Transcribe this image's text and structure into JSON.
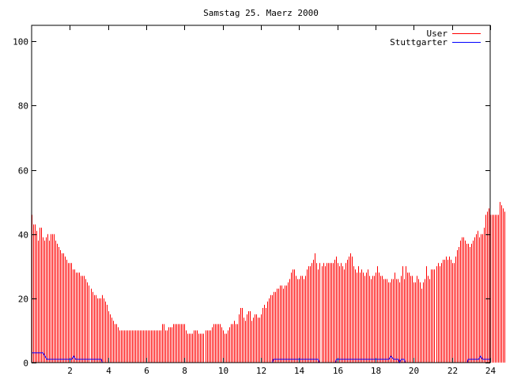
{
  "chart_data": {
    "type": "bar",
    "title": "Samstag 25. Maerz 2000",
    "xlabel": "",
    "ylabel": "",
    "xlim": [
      0,
      24
    ],
    "ylim": [
      0,
      105
    ],
    "xticks": [
      2,
      4,
      6,
      8,
      10,
      12,
      14,
      16,
      18,
      20,
      22,
      24
    ],
    "yticks": [
      0,
      20,
      40,
      60,
      80,
      100
    ],
    "grid": false,
    "legend_position": "top-right",
    "series": [
      {
        "name": "User",
        "color": "#ff0000",
        "style": "impulses",
        "x_start": 0,
        "x_step": 0.08333,
        "values": [
          46,
          43,
          43,
          41,
          38,
          42,
          42,
          39,
          38,
          39,
          40,
          38,
          40,
          40,
          40,
          38,
          37,
          36,
          35,
          34,
          34,
          33,
          32,
          31,
          31,
          31,
          29,
          29,
          28,
          28,
          28,
          27,
          27,
          27,
          26,
          25,
          24,
          23,
          22,
          21,
          21,
          20,
          20,
          20,
          21,
          20,
          19,
          18,
          16,
          15,
          14,
          13,
          12,
          12,
          11,
          10,
          10,
          10,
          10,
          10,
          10,
          10,
          10,
          10,
          10,
          10,
          10,
          10,
          10,
          10,
          10,
          10,
          10,
          10,
          10,
          10,
          10,
          10,
          10,
          10,
          10,
          10,
          12,
          12,
          10,
          10,
          11,
          11,
          11,
          12,
          12,
          12,
          12,
          12,
          12,
          12,
          12,
          10,
          9,
          9,
          9,
          9,
          10,
          10,
          10,
          9,
          9,
          9,
          9,
          10,
          10,
          10,
          10,
          11,
          12,
          12,
          12,
          12,
          12,
          11,
          10,
          9,
          9,
          10,
          11,
          12,
          12,
          13,
          12,
          12,
          15,
          17,
          17,
          14,
          13,
          15,
          16,
          16,
          13,
          14,
          15,
          15,
          14,
          14,
          15,
          17,
          18,
          17,
          19,
          20,
          21,
          21,
          22,
          22,
          23,
          23,
          24,
          24,
          23,
          24,
          24,
          25,
          26,
          28,
          29,
          29,
          27,
          26,
          26,
          27,
          27,
          26,
          27,
          29,
          30,
          30,
          31,
          32,
          34,
          31,
          29,
          31,
          30,
          31,
          30,
          31,
          31,
          31,
          31,
          31,
          32,
          33,
          31,
          30,
          31,
          30,
          29,
          31,
          32,
          33,
          34,
          33,
          30,
          29,
          28,
          30,
          28,
          29,
          28,
          27,
          28,
          29,
          27,
          26,
          27,
          27,
          28,
          30,
          28,
          27,
          27,
          26,
          26,
          26,
          25,
          25,
          26,
          26,
          28,
          26,
          26,
          25,
          27,
          30,
          26,
          30,
          28,
          28,
          27,
          27,
          25,
          25,
          27,
          26,
          25,
          23,
          25,
          26,
          30,
          27,
          26,
          29,
          29,
          29,
          30,
          31,
          30,
          31,
          32,
          32,
          33,
          32,
          33,
          32,
          31,
          31,
          33,
          35,
          36,
          38,
          39,
          39,
          38,
          37,
          37,
          36,
          37,
          38,
          39,
          40,
          41,
          39,
          40,
          40,
          42,
          46,
          47,
          48,
          46,
          46,
          46,
          46,
          46,
          46,
          50,
          49,
          48,
          47,
          47,
          46,
          45,
          44,
          44,
          44,
          45,
          47,
          47,
          45,
          45,
          45
        ]
      },
      {
        "name": "Stuttgarter",
        "color": "#0000ff",
        "style": "line",
        "points": [
          [
            0,
            3
          ],
          [
            0.6,
            3
          ],
          [
            0.7,
            2
          ],
          [
            0.8,
            1
          ],
          [
            2.1,
            1
          ],
          [
            2.2,
            2
          ],
          [
            2.3,
            1
          ],
          [
            3.65,
            1
          ],
          [
            3.7,
            0
          ],
          [
            12.6,
            0
          ],
          [
            12.65,
            1
          ],
          [
            15.0,
            1
          ],
          [
            15.05,
            0
          ],
          [
            15.9,
            0
          ],
          [
            15.95,
            1
          ],
          [
            18.7,
            1
          ],
          [
            18.8,
            2
          ],
          [
            18.95,
            1
          ],
          [
            19.2,
            1
          ],
          [
            19.25,
            0
          ],
          [
            19.35,
            1
          ],
          [
            19.5,
            1
          ],
          [
            19.55,
            0
          ],
          [
            22.8,
            0
          ],
          [
            22.85,
            1
          ],
          [
            23.4,
            1
          ],
          [
            23.5,
            2
          ],
          [
            23.6,
            1
          ],
          [
            24,
            1
          ]
        ]
      }
    ]
  }
}
